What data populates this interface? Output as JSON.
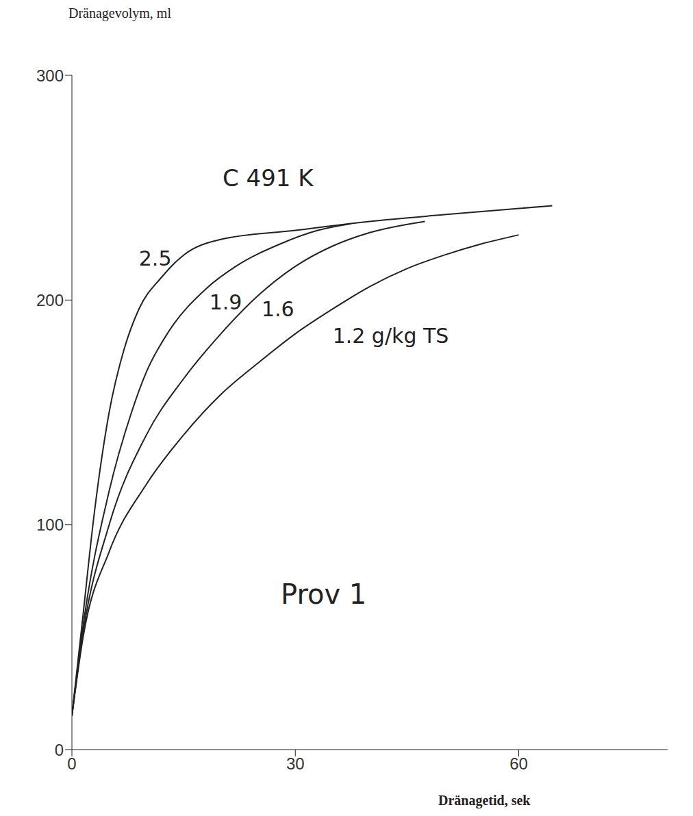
{
  "chart_data": {
    "type": "line",
    "title": "C 491 K",
    "annotations": [
      "Prov 1"
    ],
    "x_label": "Dränagetid, sek",
    "y_label": "Dränagevolym, ml",
    "xlim": [
      0,
      80
    ],
    "ylim": [
      0,
      300
    ],
    "xticks": [
      0,
      30,
      60
    ],
    "yticks": [
      0,
      100,
      200,
      300
    ],
    "grid": false,
    "series": [
      {
        "name": "2.5",
        "color": "#222222",
        "x": [
          0,
          1.5,
          3,
          5,
          7,
          9,
          12,
          15,
          20,
          30,
          40,
          50,
          64.5
        ],
        "values": [
          15,
          60,
          105,
          150,
          178,
          196,
          210,
          220,
          227,
          231,
          235,
          238,
          242
        ]
      },
      {
        "name": "1.9",
        "color": "#222222",
        "x": [
          0,
          1.5,
          5,
          8,
          10,
          13,
          18,
          22,
          28,
          33,
          37.5
        ],
        "values": [
          15,
          55,
          115,
          150,
          168,
          186,
          205,
          215,
          225,
          231,
          234
        ]
      },
      {
        "name": "1.6",
        "color": "#222222",
        "x": [
          0,
          1.5,
          5,
          10,
          15,
          20,
          25,
          30,
          35,
          40,
          47.4
        ],
        "values": [
          15,
          52,
          100,
          140,
          165,
          185,
          202,
          215,
          224,
          230,
          235
        ]
      },
      {
        "name": "1.2 g/kg TS",
        "color": "#222222",
        "x": [
          0,
          1.5,
          5,
          10,
          15,
          20,
          25,
          30,
          35,
          40,
          45,
          50,
          55,
          60
        ],
        "values": [
          15,
          50,
          88,
          118,
          140,
          158,
          172,
          185,
          196,
          206,
          214,
          220,
          225,
          229
        ]
      }
    ]
  }
}
